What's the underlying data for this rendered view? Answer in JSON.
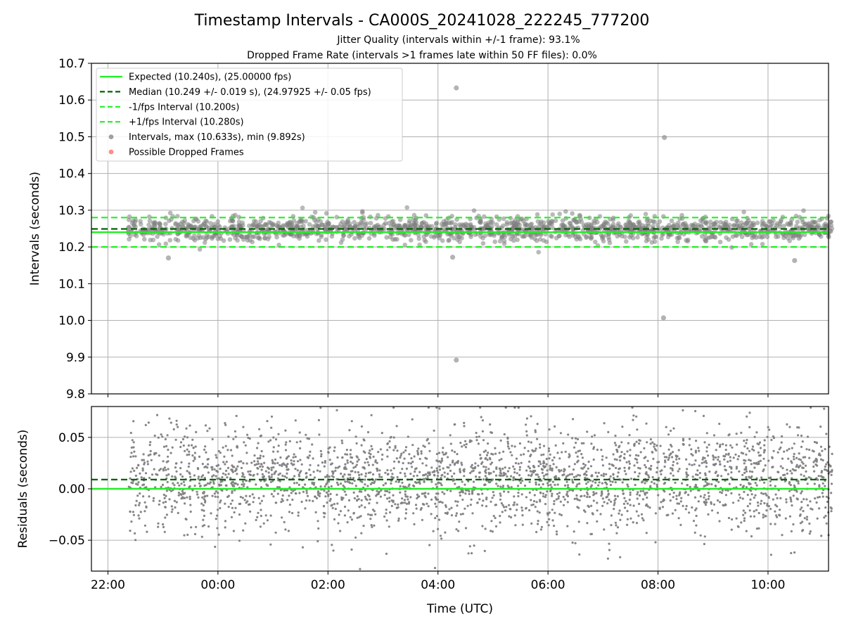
{
  "figure": {
    "title": "Timestamp Intervals - CA000S_20241028_222245_777200",
    "subtitle_jitter": "Jitter Quality (intervals within +/-1 frame): 93.1%",
    "subtitle_dropped": "Dropped Frame Rate (intervals >1 frames late within 50 FF files): 0.0%",
    "xlabel": "Time (UTC)"
  },
  "colors": {
    "expected": "#22ee22",
    "median": "#006400",
    "interval_bounds": "#22ee22",
    "points": "#808080",
    "dropped": "#ff6666",
    "grid": "#b0b0b0"
  },
  "chart_data": [
    {
      "type": "scatter",
      "panel": "intervals",
      "ylabel": "Intervals (seconds)",
      "ylim": [
        9.8,
        10.7
      ],
      "yticks": [
        "9.8",
        "9.9",
        "10.0",
        "10.1",
        "10.2",
        "10.3",
        "10.4",
        "10.5",
        "10.6",
        "10.7"
      ],
      "xlim_hours": [
        -2.3,
        11.1
      ],
      "xticks": [
        "22:00",
        "00:00",
        "02:00",
        "04:00",
        "06:00",
        "08:00",
        "10:00"
      ],
      "grid": true,
      "legend_position": "upper-left",
      "legend": [
        "Expected (10.240s), (25.00000 fps)",
        "Median (10.249 +/- 0.019 s), (24.97925 +/- 0.05 fps)",
        "-1/fps Interval (10.200s)",
        "+1/fps Interval (10.280s)",
        "Intervals, max (10.633s), min (9.892s)",
        "Possible Dropped Frames"
      ],
      "reference_lines": {
        "expected": 10.24,
        "median": 10.249,
        "minus_one_frame": 10.2,
        "plus_one_frame": 10.28
      },
      "series": [
        {
          "name": "Intervals, max (10.633s), min (9.892s)",
          "time_range": [
            "22:22",
            "11:10"
          ],
          "typical_range": [
            10.2,
            10.3
          ],
          "mean": 10.249,
          "std": 0.019,
          "outliers": [
            {
              "time": "04:20",
              "value": 10.633
            },
            {
              "time": "04:20",
              "value": 9.892
            },
            {
              "time": "08:07",
              "value": 10.498
            },
            {
              "time": "08:06",
              "value": 10.007
            },
            {
              "time": "04:16",
              "value": 10.172
            },
            {
              "time": "10:29",
              "value": 10.163
            },
            {
              "time": "23:06",
              "value": 10.17
            }
          ]
        },
        {
          "name": "Possible Dropped Frames",
          "values": []
        }
      ]
    },
    {
      "type": "scatter",
      "panel": "residuals",
      "ylabel": "Residuals (seconds)",
      "ylim": [
        -0.08,
        0.08
      ],
      "yticks": [
        "−0.05",
        "0.00",
        "0.05"
      ],
      "xlim_hours": [
        -2.3,
        11.1
      ],
      "xticks": [
        "22:00",
        "00:00",
        "02:00",
        "04:00",
        "06:00",
        "08:00",
        "10:00"
      ],
      "grid": true,
      "reference_lines": {
        "zero": 0.0,
        "median_offset": 0.009
      },
      "series": [
        {
          "name": "Residuals",
          "time_range": [
            "22:22",
            "11:10"
          ],
          "mean": 0.01,
          "std": 0.025,
          "range": [
            -0.078,
            0.079
          ]
        }
      ]
    }
  ]
}
